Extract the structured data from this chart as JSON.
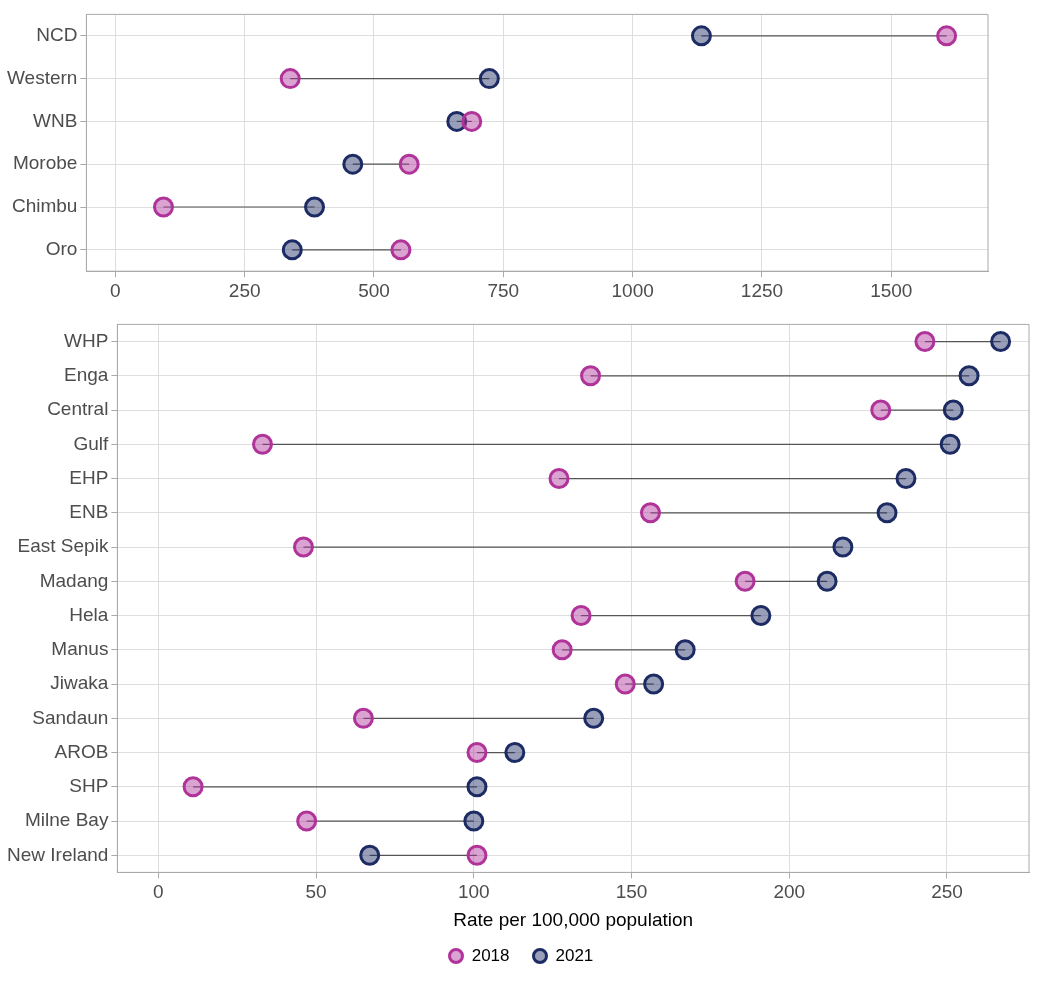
{
  "chart_data": [
    {
      "type": "scatter",
      "orientation": "horizontal",
      "categories": [
        "NCD",
        "Western",
        "WNB",
        "Morobe",
        "Chimbu",
        "Oro"
      ],
      "series": [
        {
          "color": "#b0339a",
          "values": [
            1607,
            338,
            689,
            568,
            93,
            552
          ]
        },
        {
          "color": "#1c2b63",
          "values": [
            1133,
            723,
            660,
            459,
            385,
            342
          ]
        }
      ],
      "xlim": [
        -56,
        1687
      ],
      "xticks": [
        0,
        250,
        500,
        750,
        1000,
        1250,
        1500
      ],
      "grid": true,
      "marker": "circle"
    },
    {
      "type": "scatter",
      "orientation": "horizontal",
      "categories": [
        "WHP",
        "Enga",
        "Central",
        "Gulf",
        "EHP",
        "ENB",
        "East Sepik",
        "Madang",
        "Hela",
        "Manus",
        "Jiwaka",
        "Sandaun",
        "AROB",
        "SHP",
        "Milne Bay",
        "New Ireland"
      ],
      "series": [
        {
          "name": "2018",
          "color": "#b0339a",
          "values": [
            243,
            137,
            229,
            33,
            127,
            156,
            46,
            186,
            134,
            128,
            148,
            65,
            101,
            11,
            47,
            101
          ]
        },
        {
          "name": "2021",
          "color": "#1c2b63",
          "values": [
            267,
            257,
            252,
            251,
            237,
            231,
            217,
            212,
            191,
            167,
            157,
            138,
            113,
            101,
            100,
            67
          ]
        }
      ],
      "xlim": [
        -13,
        276
      ],
      "xticks": [
        0,
        50,
        100,
        150,
        200,
        250
      ],
      "xlabel": "Rate per 100,000 population",
      "grid": true,
      "marker": "circle",
      "legend": "bottom"
    }
  ]
}
